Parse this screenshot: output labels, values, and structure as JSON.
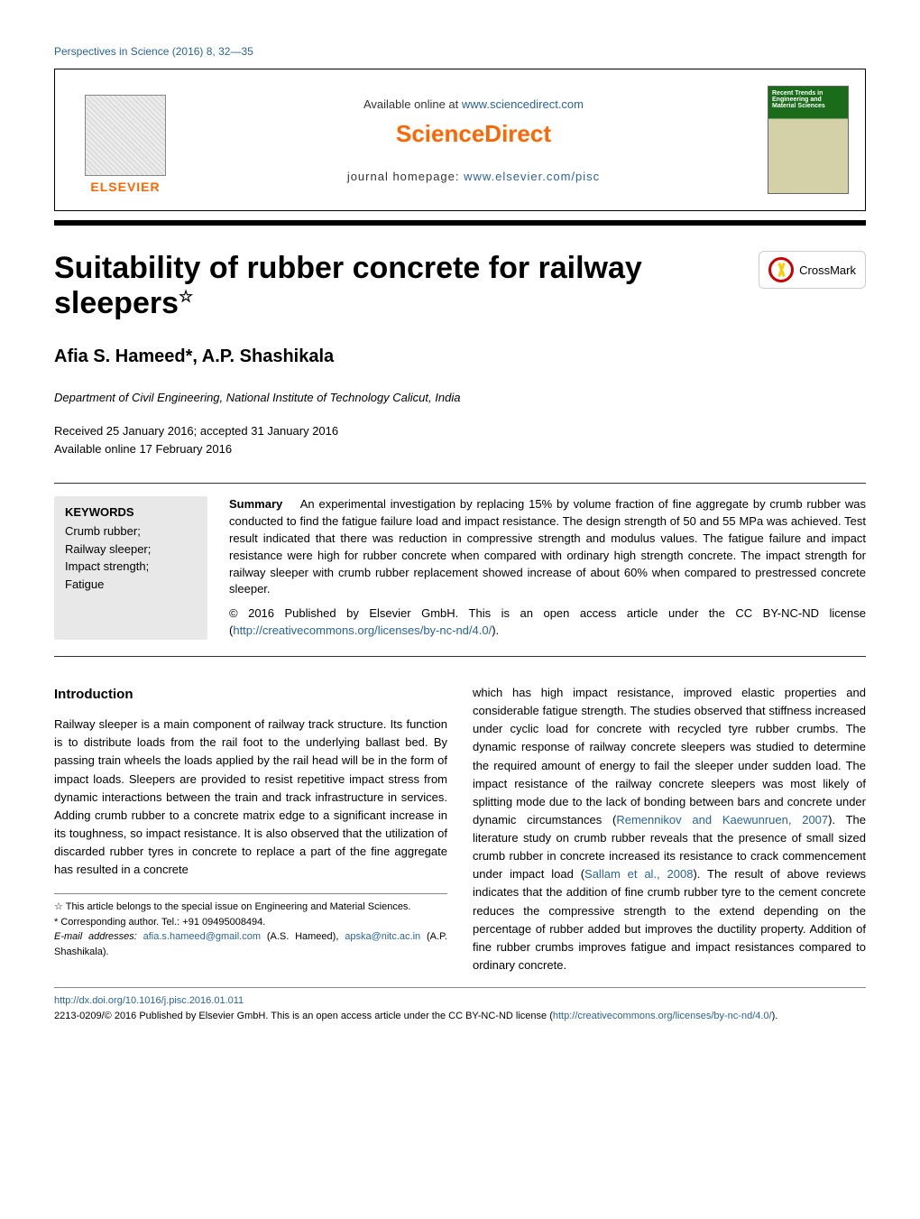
{
  "journal_ref": "Perspectives in Science (2016) 8, 32—35",
  "masthead": {
    "elsevier": "ELSEVIER",
    "available": "Available online at ",
    "available_url": "www.sciencedirect.com",
    "sciencedirect": "ScienceDirect",
    "homepage_label": "journal homepage: ",
    "homepage_url": "www.elsevier.com/pisc",
    "cover_title": "Recent Trends in Engineering and Material Sciences"
  },
  "title": "Suitability of rubber concrete for railway sleepers",
  "title_note_marker": "☆",
  "crossmark": "CrossMark",
  "authors": "Afia S. Hameed*, A.P. Shashikala",
  "affiliation": "Department of Civil Engineering, National Institute of Technology Calicut, India",
  "dates": {
    "received": "Received 25 January 2016; accepted 31 January 2016",
    "online": "Available online 17 February 2016"
  },
  "keywords": {
    "heading": "KEYWORDS",
    "items": "Crumb rubber;\nRailway sleeper;\nImpact strength;\nFatigue"
  },
  "summary": {
    "heading": "Summary",
    "text": "An experimental investigation by replacing 15% by volume fraction of fine aggregate by crumb rubber was conducted to find the fatigue failure load and impact resistance. The design strength of 50 and 55 MPa was achieved. Test result indicated that there was reduction in compressive strength and modulus values. The fatigue failure and impact resistance were high for rubber concrete when compared with ordinary high strength concrete. The impact strength for railway sleeper with crumb rubber replacement showed increase of about 60% when compared to prestressed concrete sleeper.",
    "copyright": "© 2016 Published by Elsevier GmbH. This is an open access article under the CC BY-NC-ND license (",
    "license_url": "http://creativecommons.org/licenses/by-nc-nd/4.0/",
    "copyright_close": ")."
  },
  "intro": {
    "heading": "Introduction",
    "col1": "Railway sleeper is a main component of railway track structure. Its function is to distribute loads from the rail foot to the underlying ballast bed. By passing train wheels the loads applied by the rail head will be in the form of impact loads. Sleepers are provided to resist repetitive impact stress from dynamic interactions between the train and track infrastructure in services. Adding crumb rubber to a concrete matrix edge to a significant increase in its toughness, so impact resistance. It is also observed that the utilization of discarded rubber tyres in concrete to replace a part of the fine aggregate has resulted in a concrete",
    "col2a": "which has high impact resistance, improved elastic properties and considerable fatigue strength. The studies observed that stiffness increased under cyclic load for concrete with recycled tyre rubber crumbs. The dynamic response of railway concrete sleepers was studied to determine the required amount of energy to fail the sleeper under sudden load. The impact resistance of the railway concrete sleepers was most likely of splitting mode due to the lack of bonding between bars and concrete under dynamic circumstances (",
    "cite1": "Remennikov and Kaewunruen, 2007",
    "col2b": "). The literature study on crumb rubber reveals that the presence of small sized crumb rubber in concrete increased its resistance to crack commencement under impact load (",
    "cite2": "Sallam et al., 2008",
    "col2c": "). The result of above reviews indicates that the addition of fine crumb rubber tyre to the cement concrete reduces the compressive strength to the extend depending on the percentage of rubber added but improves the ductility property. Addition of fine rubber crumbs improves fatigue and impact resistances compared to ordinary concrete."
  },
  "footnotes": {
    "star": "☆ This article belongs to the special issue on Engineering and Material Sciences.",
    "corr": "* Corresponding author. Tel.: +91 09495008494.",
    "email_label": "E-mail addresses: ",
    "email1": "afia.s.hameed@gmail.com",
    "email1_who": " (A.S. Hameed), ",
    "email2": "apska@nitc.ac.in",
    "email2_who": " (A.P. Shashikala)."
  },
  "doi": {
    "url": "http://dx.doi.org/10.1016/j.pisc.2016.01.011",
    "line2a": "2213-0209/© 2016 Published by Elsevier GmbH. This is an open access article under the CC BY-NC-ND license (",
    "license_url": "http://creativecommons.org/licenses/by-nc-nd/4.0/",
    "line2b": ")."
  },
  "colors": {
    "link": "#2a6496",
    "accent": "#ff6600",
    "keyword_bg": "#e8e8e8"
  }
}
